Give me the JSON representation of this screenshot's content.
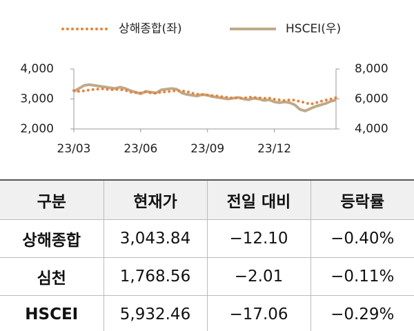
{
  "chart_data": {
    "type": "line",
    "categories": [
      "23/03",
      null,
      null,
      null,
      null,
      null,
      null,
      null,
      null,
      null,
      null,
      null,
      null,
      "23/06",
      null,
      null,
      null,
      null,
      null,
      null,
      null,
      null,
      null,
      null,
      null,
      null,
      "23/09",
      null,
      null,
      null,
      null,
      null,
      null,
      null,
      null,
      null,
      null,
      null,
      null,
      "23/12",
      null,
      null,
      null,
      null,
      null,
      null,
      null,
      null,
      null,
      null,
      null,
      null
    ],
    "series": [
      {
        "name": "상해종합(좌)",
        "color": "#e8833a",
        "line_style": "dotted",
        "axis": "y",
        "values": [
          3280,
          3250,
          3270,
          3300,
          3320,
          3330,
          3340,
          3300,
          3320,
          3310,
          3290,
          3230,
          3210,
          3200,
          3240,
          3200,
          3190,
          3230,
          3240,
          3260,
          3280,
          3270,
          3250,
          3190,
          3160,
          3140,
          3130,
          3110,
          3100,
          3070,
          3050,
          3030,
          3040,
          3020,
          3060,
          3050,
          3040,
          3020,
          3030,
          2990,
          2970,
          2950,
          2970,
          2960,
          2910,
          2880,
          2820,
          2870,
          2920,
          2960,
          3000,
          3044
        ]
      },
      {
        "name": "HSCEI(우)",
        "color": "#bfa98a",
        "line_style": "solid",
        "axis": "y2",
        "values": [
          6500,
          6700,
          6900,
          6950,
          6900,
          6850,
          6800,
          6750,
          6700,
          6780,
          6700,
          6550,
          6450,
          6350,
          6500,
          6450,
          6400,
          6600,
          6650,
          6700,
          6650,
          6400,
          6300,
          6250,
          6200,
          6300,
          6250,
          6150,
          6100,
          6050,
          6000,
          6050,
          6100,
          6000,
          5950,
          6050,
          6000,
          5900,
          5950,
          5800,
          5750,
          5800,
          5750,
          5600,
          5300,
          5200,
          5350,
          5500,
          5600,
          5700,
          5850,
          5932
        ]
      }
    ],
    "ylim": [
      2000,
      4000
    ],
    "yticks": [
      {
        "value": 2000,
        "label": "2,000"
      },
      {
        "value": 3000,
        "label": "3,000"
      },
      {
        "value": 4000,
        "label": "4,000"
      }
    ],
    "y2lim": [
      4000,
      8000
    ],
    "y2ticks": [
      {
        "value": 4000,
        "label": "4,000"
      },
      {
        "value": 6000,
        "label": "6,000"
      },
      {
        "value": 8000,
        "label": "8,000"
      }
    ],
    "grid": false,
    "legend": "top"
  },
  "table": {
    "header": [
      "구분",
      "현재가",
      "전일 대비",
      "등락률"
    ],
    "rows": [
      [
        "상해종합",
        "3,043.84",
        "−12.10",
        "−0.40%"
      ],
      [
        "심천",
        "1,768.56",
        "−2.01",
        "−0.11%"
      ],
      [
        "HSCEI",
        "5,932.46",
        "−17.06",
        "−0.29%"
      ]
    ]
  }
}
